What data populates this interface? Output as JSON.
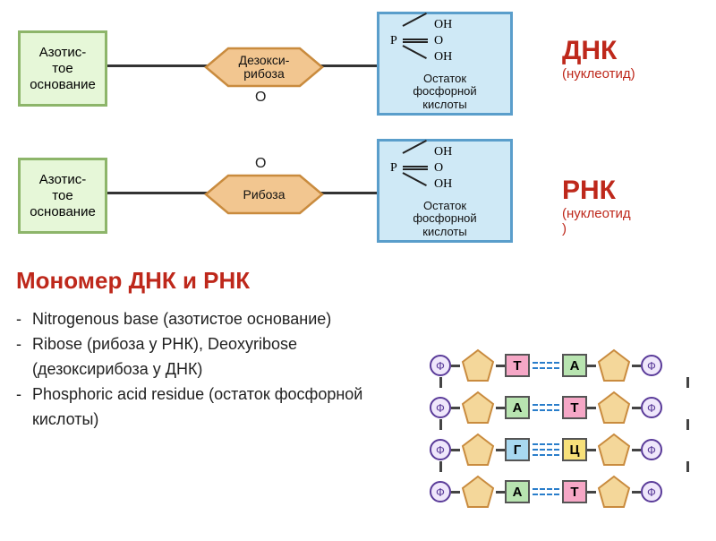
{
  "dna_row": {
    "base": {
      "label": "Азотис-\nтое\nоснование",
      "bg": "#e6f7d8",
      "border": "#8db56a"
    },
    "sugar": {
      "label": "Дезокси-\nрибоза",
      "fill": "#f2c690",
      "stroke": "#c98b3e"
    },
    "o_label": "O",
    "o_position": "bottom",
    "phosphate": {
      "p": "P",
      "oh": "OH",
      "o": "O",
      "label": "Остаток\nфосфорной\nкислоты",
      "bg": "#cfe9f6",
      "border": "#5a9ecb"
    },
    "side": {
      "main": "ДНК",
      "sub": "(нуклеотид)",
      "color": "#be281b"
    }
  },
  "rna_row": {
    "base": {
      "label": "Азотис-\nтое\nоснование",
      "bg": "#e6f7d8",
      "border": "#8db56a"
    },
    "sugar": {
      "label": "Рибоза",
      "fill": "#f2c690",
      "stroke": "#c98b3e"
    },
    "o_label": "O",
    "o_position": "top",
    "phosphate": {
      "p": "P",
      "oh": "OH",
      "o": "O",
      "label": "Остаток\nфосфорной\nкислоты",
      "bg": "#cfe9f6",
      "border": "#5a9ecb"
    },
    "side": {
      "main": "РНК",
      "sub": "(нуклеотид\n)",
      "color": "#be281b"
    }
  },
  "section_title": "Мономер ДНК и РНК",
  "bullets": [
    "    Nitrogenous base (азотистое основание)",
    "    Ribose (рибоза у РНК), Deoxyribose (дезоксирибоза у ДНК)",
    " Phosphoric acid residue (остаток фосфорной кислоты)"
  ],
  "pairing": {
    "phi": "Ф",
    "pentagon_fill": "#f4d79a",
    "pentagon_stroke": "#c98b3e",
    "rows": [
      {
        "left": "Т",
        "left_bg": "#f6a7c6",
        "right": "А",
        "right_bg": "#b8e4b0",
        "bonds": 2
      },
      {
        "left": "А",
        "left_bg": "#b8e4b0",
        "right": "Т",
        "right_bg": "#f6a7c6",
        "bonds": 2
      },
      {
        "left": "Г",
        "left_bg": "#a8d8f0",
        "right": "Ц",
        "right_bg": "#f7e07a",
        "bonds": 3
      },
      {
        "left": "А",
        "left_bg": "#b8e4b0",
        "right": "Т",
        "right_bg": "#f6a7c6",
        "bonds": 2
      }
    ]
  }
}
